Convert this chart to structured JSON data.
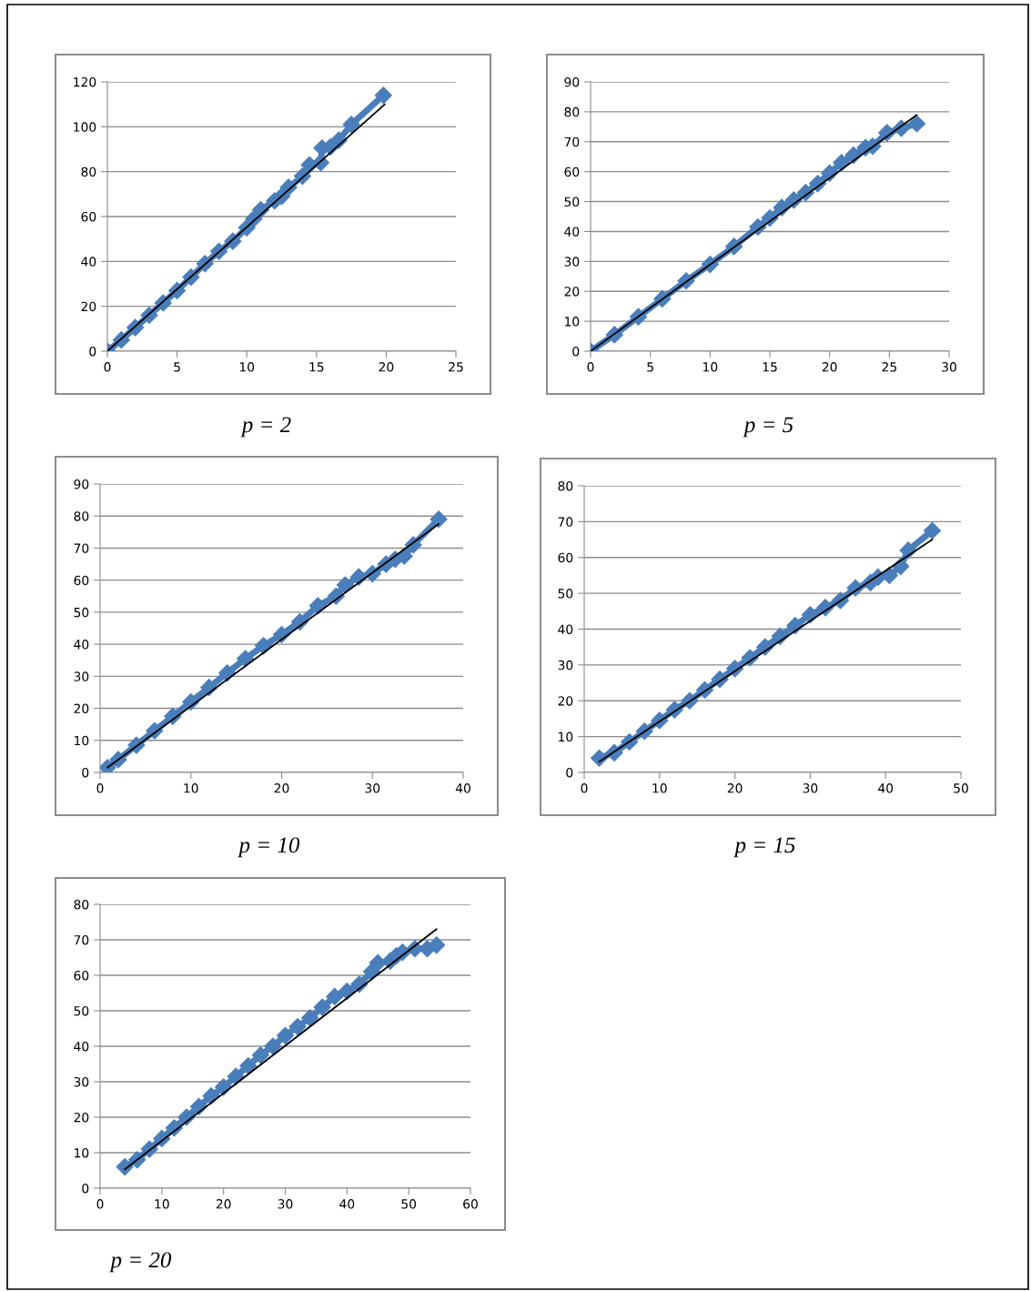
{
  "chart_data": [
    {
      "type": "line",
      "title": "p = 2",
      "xlim": [
        0,
        25
      ],
      "xticks": [
        0,
        5,
        10,
        15,
        20,
        25
      ],
      "ylim": [
        0,
        120
      ],
      "yticks": [
        0,
        20,
        40,
        60,
        80,
        100,
        120
      ],
      "grid": "y",
      "marker": "diamond",
      "line_style": "solid",
      "series": [
        {
          "color": "#4a7ebb",
          "x": [
            0,
            1,
            2,
            3,
            4,
            5,
            6,
            7,
            8,
            9,
            10,
            10.5,
            11,
            12,
            12.5,
            13,
            14,
            14.5,
            15.3,
            15.4,
            16,
            16.6,
            17.5,
            19.8
          ],
          "values": [
            0,
            5,
            10.5,
            16,
            21.5,
            27,
            33,
            39,
            44.5,
            49,
            55,
            59,
            63,
            67,
            69,
            73,
            78,
            83,
            84,
            90.5,
            91,
            94,
            101,
            114
          ]
        },
        {
          "type": "line",
          "color": "#000000",
          "marker": "none",
          "x": [
            0,
            19.9
          ],
          "values": [
            0,
            110
          ]
        }
      ]
    },
    {
      "type": "line",
      "title": "p = 5",
      "xlim": [
        0,
        30
      ],
      "xticks": [
        0,
        5,
        10,
        15,
        20,
        25,
        30
      ],
      "ylim": [
        0,
        90
      ],
      "yticks": [
        0,
        10,
        20,
        30,
        40,
        50,
        60,
        70,
        80,
        90
      ],
      "grid": "y",
      "marker": "diamond",
      "line_style": "solid",
      "series": [
        {
          "color": "#4a7ebb",
          "x": [
            0,
            2,
            4,
            6,
            8,
            10,
            12,
            14,
            15,
            16,
            17,
            18,
            19,
            20,
            21,
            22,
            23,
            23.6,
            24.8,
            26,
            27.3
          ],
          "values": [
            0,
            5.5,
            11.5,
            17.5,
            23.5,
            29,
            35,
            41.5,
            44.5,
            48,
            50.5,
            53,
            56,
            59.5,
            63,
            65.5,
            68,
            68.5,
            73,
            74.5,
            76
          ]
        },
        {
          "type": "line",
          "color": "#000000",
          "marker": "none",
          "x": [
            0,
            27.3
          ],
          "values": [
            0,
            79
          ]
        }
      ]
    },
    {
      "type": "line",
      "title": "p = 10",
      "xlim": [
        0,
        40
      ],
      "xticks": [
        0,
        10,
        20,
        30,
        40
      ],
      "ylim": [
        0,
        90
      ],
      "yticks": [
        0,
        10,
        20,
        30,
        40,
        50,
        60,
        70,
        80,
        90
      ],
      "grid": "y",
      "marker": "diamond",
      "line_style": "solid",
      "series": [
        {
          "color": "#4a7ebb",
          "x": [
            0.8,
            2,
            4,
            6,
            8,
            10,
            12,
            14,
            16,
            18,
            20,
            22,
            24,
            26,
            27,
            28.5,
            30,
            31.5,
            32.5,
            33.5,
            34.5,
            37.3
          ],
          "values": [
            1.5,
            4,
            8.5,
            13,
            17.5,
            22,
            26.5,
            31,
            35.5,
            39.5,
            43,
            47,
            52,
            55,
            58.5,
            61,
            62,
            65,
            66.5,
            67.5,
            71,
            79
          ]
        },
        {
          "type": "line",
          "color": "#000000",
          "marker": "none",
          "x": [
            0.8,
            37.3
          ],
          "values": [
            1.5,
            77.5
          ]
        }
      ]
    },
    {
      "type": "line",
      "title": "p = 15",
      "xlim": [
        0,
        50
      ],
      "xticks": [
        0,
        10,
        20,
        30,
        40,
        50
      ],
      "ylim": [
        0,
        80
      ],
      "yticks": [
        0,
        10,
        20,
        30,
        40,
        50,
        60,
        70,
        80
      ],
      "grid": "y",
      "marker": "diamond",
      "line_style": "solid",
      "series": [
        {
          "color": "#4a7ebb",
          "x": [
            2,
            4,
            6,
            8,
            10,
            12,
            14,
            16,
            18,
            20,
            22,
            24,
            26,
            28,
            30,
            32,
            34,
            36,
            38,
            39,
            40.5,
            42,
            43,
            46.2
          ],
          "values": [
            4,
            5.5,
            8.5,
            11.5,
            14.5,
            17.5,
            20,
            23,
            26,
            29,
            32,
            35,
            38,
            41,
            44,
            46,
            48,
            51.5,
            53,
            54.5,
            55,
            57.5,
            62,
            67.5
          ]
        },
        {
          "type": "line",
          "color": "#000000",
          "marker": "none",
          "x": [
            2,
            46.2
          ],
          "values": [
            3,
            65
          ]
        }
      ]
    },
    {
      "type": "line",
      "title": "p = 20",
      "xlim": [
        0,
        60
      ],
      "xticks": [
        0,
        10,
        20,
        30,
        40,
        50,
        60
      ],
      "ylim": [
        0,
        80
      ],
      "yticks": [
        0,
        10,
        20,
        30,
        40,
        50,
        60,
        70,
        80
      ],
      "grid": "y",
      "marker": "diamond",
      "line_style": "solid",
      "series": [
        {
          "color": "#4a7ebb",
          "x": [
            4,
            6,
            8,
            10,
            12,
            14,
            16,
            18,
            20,
            22,
            24,
            26,
            28,
            30,
            32,
            34,
            36,
            38,
            40,
            42,
            44,
            45,
            47,
            48,
            49,
            51,
            53,
            54.5
          ],
          "values": [
            6,
            8,
            11,
            14,
            17,
            20,
            23,
            26,
            28.5,
            31.5,
            34.5,
            37.5,
            40,
            43,
            45.5,
            48,
            51,
            54,
            55.5,
            57.5,
            61,
            63.5,
            64,
            65.5,
            66.5,
            67.5,
            67.5,
            68.5
          ]
        },
        {
          "type": "line",
          "color": "#000000",
          "marker": "none",
          "x": [
            4,
            54.5
          ],
          "values": [
            5.3,
            73
          ]
        }
      ]
    }
  ]
}
